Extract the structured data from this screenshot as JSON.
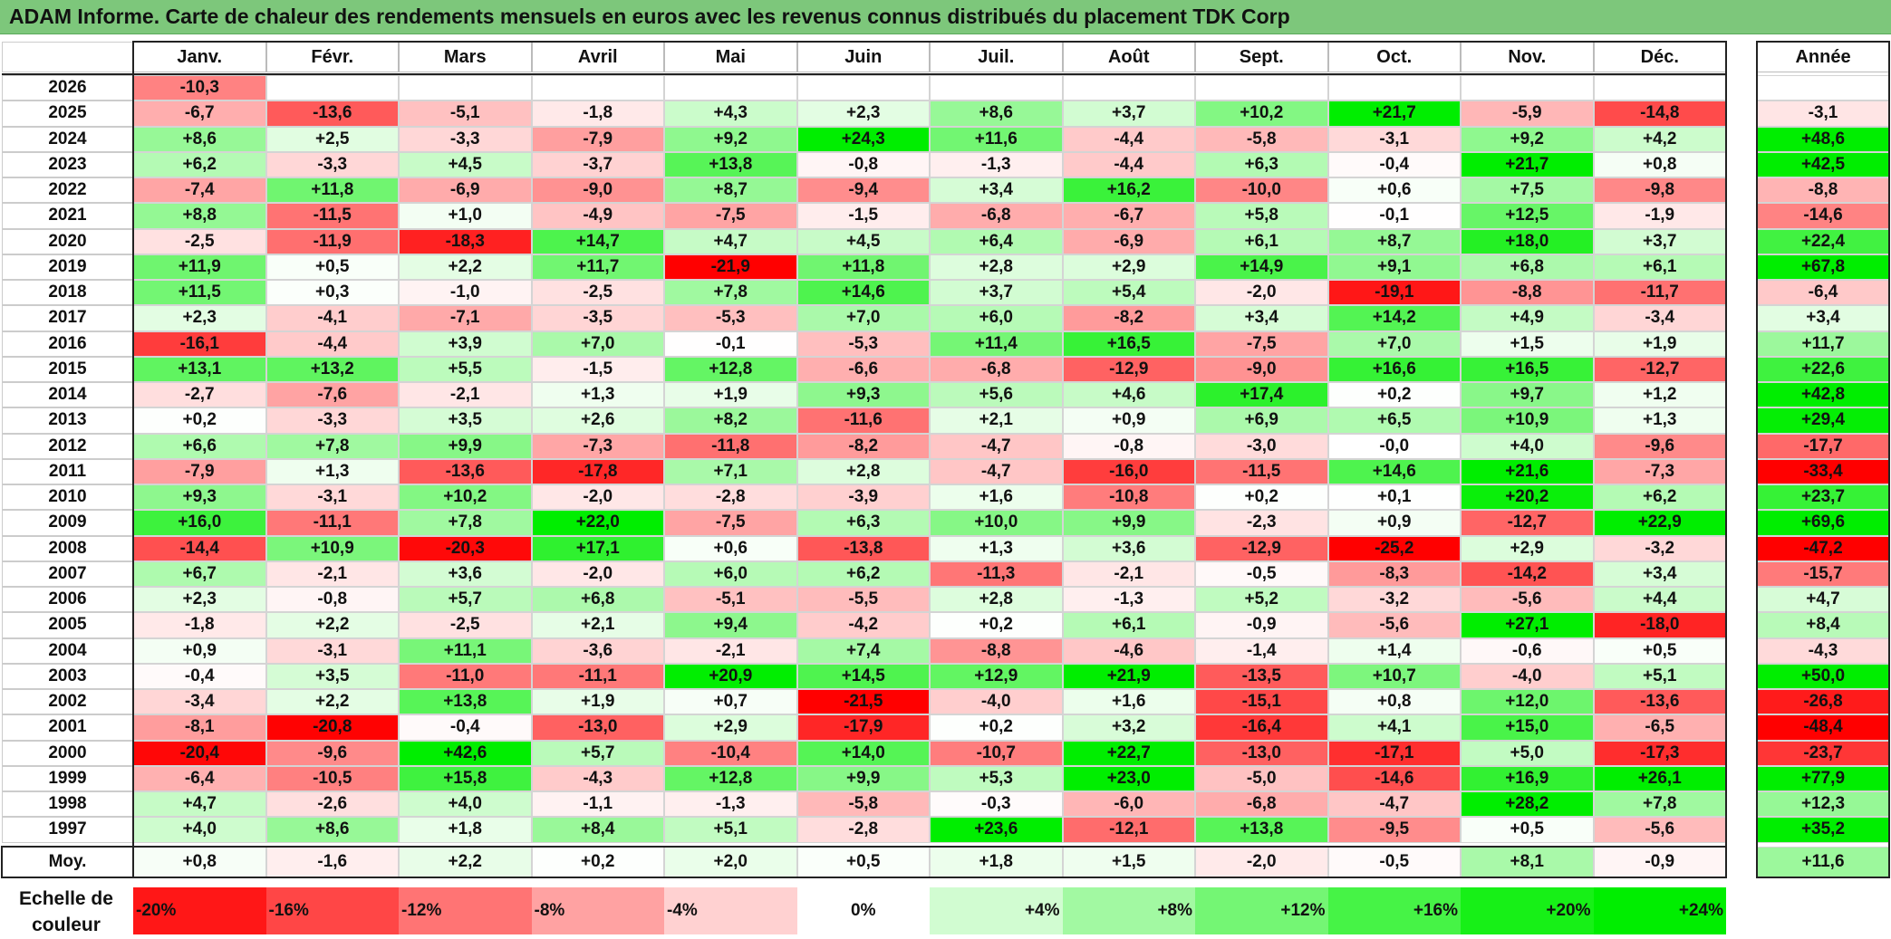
{
  "title": "ADAM Informe. Carte de chaleur des rendements mensuels en euros avec les revenus connus distribués du placement TDK Corp",
  "chart_data": {
    "type": "heatmap",
    "months": [
      "Janv.",
      "Févr.",
      "Mars",
      "Avril",
      "Mai",
      "Juin",
      "Juil.",
      "Août",
      "Sept.",
      "Oct.",
      "Nov.",
      "Déc."
    ],
    "year_header": "Année",
    "avg_label": "Moy.",
    "rows": [
      {
        "year": "2026",
        "cells": [
          "-10,3",
          "",
          "",
          "",
          "",
          "",
          "",
          "",
          "",
          "",
          "",
          ""
        ],
        "annual": ""
      },
      {
        "year": "2025",
        "cells": [
          "-6,7",
          "-13,6",
          "-5,1",
          "-1,8",
          "+4,3",
          "+2,3",
          "+8,6",
          "+3,7",
          "+10,2",
          "+21,7",
          "-5,9",
          "-14,8"
        ],
        "annual": "-3,1"
      },
      {
        "year": "2024",
        "cells": [
          "+8,6",
          "+2,5",
          "-3,3",
          "-7,9",
          "+9,2",
          "+24,3",
          "+11,6",
          "-4,4",
          "-5,8",
          "-3,1",
          "+9,2",
          "+4,2"
        ],
        "annual": "+48,6"
      },
      {
        "year": "2023",
        "cells": [
          "+6,2",
          "-3,3",
          "+4,5",
          "-3,7",
          "+13,8",
          "-0,8",
          "-1,3",
          "-4,4",
          "+6,3",
          "-0,4",
          "+21,7",
          "+0,8"
        ],
        "annual": "+42,5"
      },
      {
        "year": "2022",
        "cells": [
          "-7,4",
          "+11,8",
          "-6,9",
          "-9,0",
          "+8,7",
          "-9,4",
          "+3,4",
          "+16,2",
          "-10,0",
          "+0,6",
          "+7,5",
          "-9,8"
        ],
        "annual": "-8,8"
      },
      {
        "year": "2021",
        "cells": [
          "+8,8",
          "-11,5",
          "+1,0",
          "-4,9",
          "-7,5",
          "-1,5",
          "-6,8",
          "-6,7",
          "+5,8",
          "-0,1",
          "+12,5",
          "-1,9"
        ],
        "annual": "-14,6"
      },
      {
        "year": "2020",
        "cells": [
          "-2,5",
          "-11,9",
          "-18,3",
          "+14,7",
          "+4,7",
          "+4,5",
          "+6,4",
          "-6,9",
          "+6,1",
          "+8,7",
          "+18,0",
          "+3,7"
        ],
        "annual": "+22,4"
      },
      {
        "year": "2019",
        "cells": [
          "+11,9",
          "+0,5",
          "+2,2",
          "+11,7",
          "-21,9",
          "+11,8",
          "+2,8",
          "+2,9",
          "+14,9",
          "+9,1",
          "+6,8",
          "+6,1"
        ],
        "annual": "+67,8"
      },
      {
        "year": "2018",
        "cells": [
          "+11,5",
          "+0,3",
          "-1,0",
          "-2,5",
          "+7,8",
          "+14,6",
          "+3,7",
          "+5,4",
          "-2,0",
          "-19,1",
          "-8,8",
          "-11,7"
        ],
        "annual": "-6,4"
      },
      {
        "year": "2017",
        "cells": [
          "+2,3",
          "-4,1",
          "-7,1",
          "-3,5",
          "-5,3",
          "+7,0",
          "+6,0",
          "-8,2",
          "+3,4",
          "+14,2",
          "+4,9",
          "-3,4"
        ],
        "annual": "+3,4"
      },
      {
        "year": "2016",
        "cells": [
          "-16,1",
          "-4,4",
          "+3,9",
          "+7,0",
          "-0,1",
          "-5,3",
          "+11,4",
          "+16,5",
          "-7,5",
          "+7,0",
          "+1,5",
          "+1,9"
        ],
        "annual": "+11,7"
      },
      {
        "year": "2015",
        "cells": [
          "+13,1",
          "+13,2",
          "+5,5",
          "-1,5",
          "+12,8",
          "-6,6",
          "-6,8",
          "-12,9",
          "-9,0",
          "+16,6",
          "+16,5",
          "-12,7"
        ],
        "annual": "+22,6"
      },
      {
        "year": "2014",
        "cells": [
          "-2,7",
          "-7,6",
          "-2,1",
          "+1,3",
          "+1,9",
          "+9,3",
          "+5,6",
          "+4,6",
          "+17,4",
          "+0,2",
          "+9,7",
          "+1,2"
        ],
        "annual": "+42,8"
      },
      {
        "year": "2013",
        "cells": [
          "+0,2",
          "-3,3",
          "+3,5",
          "+2,6",
          "+8,2",
          "-11,6",
          "+2,1",
          "+0,9",
          "+6,9",
          "+6,5",
          "+10,9",
          "+1,3"
        ],
        "annual": "+29,4"
      },
      {
        "year": "2012",
        "cells": [
          "+6,6",
          "+7,8",
          "+9,9",
          "-7,3",
          "-11,8",
          "-8,2",
          "-4,7",
          "-0,8",
          "-3,0",
          "-0,0",
          "+4,0",
          "-9,6"
        ],
        "annual": "-17,7"
      },
      {
        "year": "2011",
        "cells": [
          "-7,9",
          "+1,3",
          "-13,6",
          "-17,8",
          "+7,1",
          "+2,8",
          "-4,7",
          "-16,0",
          "-11,5",
          "+14,6",
          "+21,6",
          "-7,3"
        ],
        "annual": "-33,4"
      },
      {
        "year": "2010",
        "cells": [
          "+9,3",
          "-3,1",
          "+10,2",
          "-2,0",
          "-2,8",
          "-3,9",
          "+1,6",
          "-10,8",
          "+0,2",
          "+0,1",
          "+20,2",
          "+6,2"
        ],
        "annual": "+23,7"
      },
      {
        "year": "2009",
        "cells": [
          "+16,0",
          "-11,1",
          "+7,8",
          "+22,0",
          "-7,5",
          "+6,3",
          "+10,0",
          "+9,9",
          "-2,3",
          "+0,9",
          "-12,7",
          "+22,9"
        ],
        "annual": "+69,6"
      },
      {
        "year": "2008",
        "cells": [
          "-14,4",
          "+10,9",
          "-20,3",
          "+17,1",
          "+0,6",
          "-13,8",
          "+1,3",
          "+3,6",
          "-12,9",
          "-25,2",
          "+2,9",
          "-3,2"
        ],
        "annual": "-47,2"
      },
      {
        "year": "2007",
        "cells": [
          "+6,7",
          "-2,1",
          "+3,6",
          "-2,0",
          "+6,0",
          "+6,2",
          "-11,3",
          "-2,1",
          "-0,5",
          "-8,3",
          "-14,2",
          "+3,4"
        ],
        "annual": "-15,7"
      },
      {
        "year": "2006",
        "cells": [
          "+2,3",
          "-0,8",
          "+5,7",
          "+6,8",
          "-5,1",
          "-5,5",
          "+2,8",
          "-1,3",
          "+5,2",
          "-3,2",
          "-5,6",
          "+4,4"
        ],
        "annual": "+4,7"
      },
      {
        "year": "2005",
        "cells": [
          "-1,8",
          "+2,2",
          "-2,5",
          "+2,1",
          "+9,4",
          "-4,2",
          "+0,2",
          "+6,1",
          "-0,9",
          "-5,6",
          "+27,1",
          "-18,0"
        ],
        "annual": "+8,4"
      },
      {
        "year": "2004",
        "cells": [
          "+0,9",
          "-3,1",
          "+11,1",
          "-3,6",
          "-2,1",
          "+7,4",
          "-8,8",
          "-4,6",
          "-1,4",
          "+1,4",
          "-0,6",
          "+0,5"
        ],
        "annual": "-4,3"
      },
      {
        "year": "2003",
        "cells": [
          "-0,4",
          "+3,5",
          "-11,0",
          "-11,1",
          "+20,9",
          "+14,5",
          "+12,9",
          "+21,9",
          "-13,5",
          "+10,7",
          "-4,0",
          "+5,1"
        ],
        "annual": "+50,0"
      },
      {
        "year": "2002",
        "cells": [
          "-3,4",
          "+2,2",
          "+13,8",
          "+1,9",
          "+0,7",
          "-21,5",
          "-4,0",
          "+1,6",
          "-15,1",
          "+0,8",
          "+12,0",
          "-13,6"
        ],
        "annual": "-26,8"
      },
      {
        "year": "2001",
        "cells": [
          "-8,1",
          "-20,8",
          "-0,4",
          "-13,0",
          "+2,9",
          "-17,9",
          "+0,2",
          "+3,2",
          "-16,4",
          "+4,1",
          "+15,0",
          "-6,5"
        ],
        "annual": "-48,4"
      },
      {
        "year": "2000",
        "cells": [
          "-20,4",
          "-9,6",
          "+42,6",
          "+5,7",
          "-10,4",
          "+14,0",
          "-10,7",
          "+22,7",
          "-13,0",
          "-17,1",
          "+5,0",
          "-17,3"
        ],
        "annual": "-23,7"
      },
      {
        "year": "1999",
        "cells": [
          "-6,4",
          "-10,5",
          "+15,8",
          "-4,3",
          "+12,8",
          "+9,9",
          "+5,3",
          "+23,0",
          "-5,0",
          "-14,6",
          "+16,9",
          "+26,1"
        ],
        "annual": "+77,9"
      },
      {
        "year": "1998",
        "cells": [
          "+4,7",
          "-2,6",
          "+4,0",
          "-1,1",
          "-1,3",
          "-5,8",
          "-0,3",
          "-6,0",
          "-6,8",
          "-4,7",
          "+28,2",
          "+7,8"
        ],
        "annual": "+12,3"
      },
      {
        "year": "1997",
        "cells": [
          "+4,0",
          "+8,6",
          "+1,8",
          "+8,4",
          "+5,1",
          "-2,8",
          "+23,6",
          "-12,1",
          "+13,8",
          "-9,5",
          "+0,5",
          "-5,6"
        ],
        "annual": "+35,2"
      }
    ],
    "averages": [
      "+0,8",
      "-1,6",
      "+2,2",
      "+0,2",
      "+2,0",
      "+0,5",
      "+1,8",
      "+1,5",
      "-2,0",
      "-0,5",
      "+8,1",
      "-0,9"
    ],
    "annual_average": "+11,6",
    "scale_label": "Echelle de couleur",
    "scale": [
      "-20%",
      "-16%",
      "-12%",
      "-8%",
      "-4%",
      "0%",
      "+4%",
      "+8%",
      "+12%",
      "+16%",
      "+20%",
      "+24%"
    ],
    "colors": {
      "positive_max": "#00ee00",
      "negative_max": "#ff0000",
      "neutral": "#ffffff",
      "title_bar": "#7dc77b"
    }
  }
}
